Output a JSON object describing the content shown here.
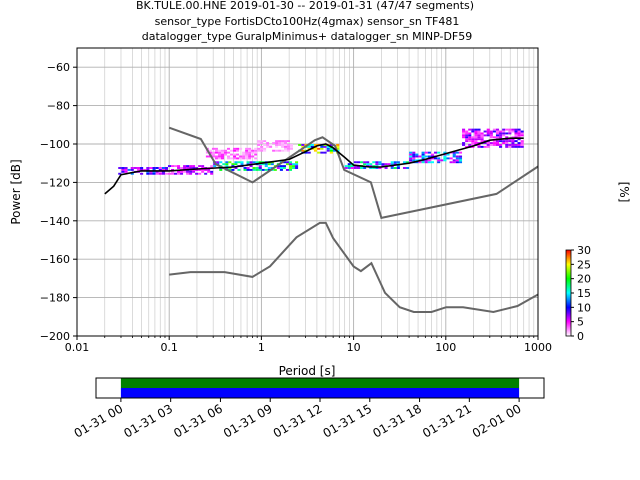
{
  "title_lines": [
    "BK.TULE.00.HNE   2019-01-30 -- 2019-01-31  (47/47 segments)",
    "sensor_type FortisDCto100Hz(4gmax) sensor_sn TF481",
    "datalogger_type GuralpMinimus+ datalogger_sn MINP-DF59"
  ],
  "chart_data": [
    {
      "type": "heatmap",
      "title": "BK.TULE.00.HNE   2019-01-30 -- 2019-01-31  (47/47 segments)",
      "xlabel": "Period [s]",
      "ylabel": "Power [dB]",
      "xscale": "log",
      "xlim": [
        0.01,
        1000
      ],
      "ylim": [
        -200,
        -50
      ],
      "x_ticks": [
        0.01,
        0.1,
        1,
        10,
        100,
        1000
      ],
      "x_tick_labels": [
        "0.01",
        "0.1",
        "1",
        "10",
        "100",
        "1000"
      ],
      "y_ticks": [
        -200,
        -180,
        -160,
        -140,
        -120,
        -100,
        -80,
        -60
      ],
      "y_tick_labels": [
        "−200",
        "−180",
        "−160",
        "−140",
        "−120",
        "−100",
        "−80",
        "−60"
      ],
      "grid": true,
      "colorbar": {
        "label": "[%]",
        "ticks": [
          0,
          5,
          10,
          15,
          20,
          25,
          30
        ],
        "range": [
          0,
          30
        ],
        "colormap": [
          "#ffffff",
          "#ff00ff",
          "#0000ff",
          "#00ffff",
          "#00ff00",
          "#ffff00",
          "#ff0000"
        ]
      },
      "series": [
        {
          "role": "mean_psd",
          "color": "#000000",
          "points": [
            [
              0.02,
              -126
            ],
            [
              0.025,
              -122
            ],
            [
              0.03,
              -116
            ],
            [
              0.05,
              -114
            ],
            [
              0.1,
              -114
            ],
            [
              0.2,
              -113
            ],
            [
              0.5,
              -112
            ],
            [
              1,
              -110
            ],
            [
              2,
              -108
            ],
            [
              3,
              -104
            ],
            [
              4,
              -101
            ],
            [
              5,
              -100
            ],
            [
              6,
              -102
            ],
            [
              8,
              -107
            ],
            [
              10,
              -111
            ],
            [
              15,
              -112
            ],
            [
              20,
              -112
            ],
            [
              40,
              -110
            ],
            [
              60,
              -108
            ],
            [
              100,
              -105
            ],
            [
              200,
              -101
            ],
            [
              300,
              -98
            ],
            [
              500,
              -97
            ],
            [
              700,
              -97
            ]
          ]
        },
        {
          "role": "upper_noise_model",
          "color": "#666666",
          "points": [
            [
              0.1,
              -91.5
            ],
            [
              0.22,
              -97.4
            ],
            [
              0.32,
              -110.5
            ],
            [
              0.8,
              -120
            ],
            [
              3.8,
              -98
            ],
            [
              4.6,
              -96.5
            ],
            [
              6.3,
              -101
            ],
            [
              7.9,
              -113.5
            ],
            [
              15.4,
              -120
            ],
            [
              20,
              -138.5
            ],
            [
              354.8,
              -126
            ],
            [
              10000,
              -80
            ]
          ]
        },
        {
          "role": "lower_noise_model",
          "color": "#666666",
          "points": [
            [
              0.1,
              -168
            ],
            [
              0.17,
              -166.7
            ],
            [
              0.4,
              -166.7
            ],
            [
              0.8,
              -169.2
            ],
            [
              1.24,
              -163.7
            ],
            [
              2.4,
              -148.6
            ],
            [
              4.3,
              -141.1
            ],
            [
              5,
              -141.1
            ],
            [
              6,
              -149
            ],
            [
              10,
              -163.8
            ],
            [
              12,
              -166.2
            ],
            [
              15.6,
              -162.1
            ],
            [
              21.9,
              -177.5
            ],
            [
              31.6,
              -185
            ],
            [
              45,
              -187.5
            ],
            [
              70,
              -187.5
            ],
            [
              101,
              -185
            ],
            [
              154,
              -185
            ],
            [
              328,
              -187.5
            ],
            [
              600,
              -184.4
            ],
            [
              10000,
              -151.5
            ]
          ]
        }
      ],
      "density_bands": [
        {
          "x": [
            0.028,
            0.09
          ],
          "y": [
            -116,
            -112
          ],
          "level": 8
        },
        {
          "x": [
            0.09,
            0.3
          ],
          "y": [
            -116,
            -111
          ],
          "level": 6
        },
        {
          "x": [
            0.25,
            0.9
          ],
          "y": [
            -108,
            -102
          ],
          "level": 3
        },
        {
          "x": [
            0.9,
            2.2
          ],
          "y": [
            -104,
            -98
          ],
          "level": 2
        },
        {
          "x": [
            0.3,
            2.5
          ],
          "y": [
            -114,
            -109
          ],
          "level": 14
        },
        {
          "x": [
            2.5,
            7
          ],
          "y": [
            -105,
            -100
          ],
          "level": 18
        },
        {
          "x": [
            8,
            40
          ],
          "y": [
            -113,
            -109
          ],
          "level": 12
        },
        {
          "x": [
            40,
            150
          ],
          "y": [
            -110,
            -104
          ],
          "level": 10
        },
        {
          "x": [
            150,
            700
          ],
          "y": [
            -102,
            -92
          ],
          "level": 6
        }
      ]
    },
    {
      "type": "timeline",
      "x_tick_labels": [
        "01-31 00",
        "01-31 03",
        "01-31 06",
        "01-31 09",
        "01-31 12",
        "01-31 15",
        "01-31 18",
        "01-31 21",
        "02-01 00"
      ],
      "xlim_hours": [
        -1.5,
        25.5
      ],
      "bars": [
        {
          "role": "data_available",
          "color": "#008000",
          "start_hours": 0,
          "end_hours": 24
        },
        {
          "role": "psd_used",
          "color": "#0000ff",
          "start_hours": 0,
          "end_hours": 24
        }
      ]
    }
  ]
}
